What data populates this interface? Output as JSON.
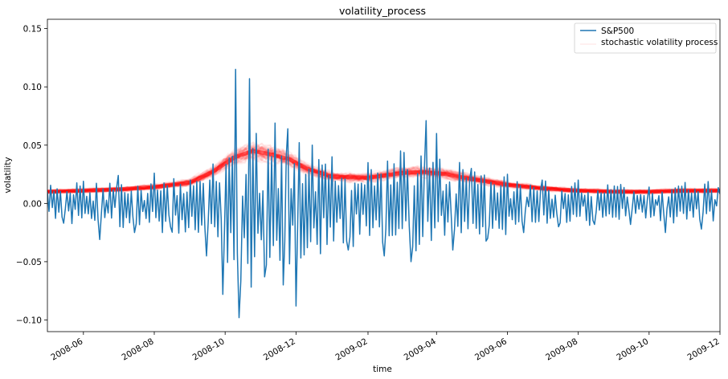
{
  "chart_data": {
    "type": "line",
    "title": "volatility_process",
    "xlabel": "time",
    "ylabel": "volatility",
    "x_start": "2008-05-01",
    "x_end": "2009-12-01",
    "ylim": [
      -0.11,
      0.158
    ],
    "grid": false,
    "legend_location": "top-right",
    "xticks": [
      "2008-06",
      "2008-08",
      "2008-10",
      "2008-12",
      "2009-02",
      "2009-04",
      "2009-06",
      "2009-08",
      "2009-10",
      "2009-12"
    ],
    "xtick_dates": [
      "2008-06-01",
      "2008-08-01",
      "2008-10-01",
      "2008-12-01",
      "2009-02-01",
      "2009-04-01",
      "2009-06-01",
      "2009-08-01",
      "2009-10-01",
      "2009-12-01"
    ],
    "yticks": [
      "0.15",
      "0.10",
      "0.05",
      "0.00",
      "−0.05",
      "−0.10"
    ],
    "ytick_values": [
      0.15,
      0.1,
      0.05,
      0.0,
      -0.05,
      -0.1
    ],
    "series": [
      {
        "name": "S&P500",
        "color": "#1f77b4",
        "style": "line",
        "dates": [
          "2008-05-01",
          "2008-05-15",
          "2008-06-01",
          "2008-06-15",
          "2008-07-01",
          "2008-07-15",
          "2008-08-01",
          "2008-08-15",
          "2008-09-01",
          "2008-09-15",
          "2008-09-29",
          "2008-10-10",
          "2008-10-13",
          "2008-10-22",
          "2008-11-04",
          "2008-11-13",
          "2008-11-20",
          "2008-11-24",
          "2008-12-01",
          "2008-12-15",
          "2009-01-01",
          "2009-01-15",
          "2009-02-01",
          "2009-02-15",
          "2009-03-01",
          "2009-03-10",
          "2009-03-23",
          "2009-04-01",
          "2009-04-15",
          "2009-05-01",
          "2009-05-15",
          "2009-06-01",
          "2009-06-15",
          "2009-07-01",
          "2009-07-15",
          "2009-08-01",
          "2009-08-15",
          "2009-09-01",
          "2009-09-15",
          "2009-10-01",
          "2009-10-15",
          "2009-11-01",
          "2009-11-15",
          "2009-12-01"
        ],
        "values": [
          0.01,
          -0.017,
          0.019,
          -0.031,
          0.024,
          -0.025,
          0.026,
          -0.02,
          0.02,
          -0.045,
          -0.078,
          0.115,
          -0.098,
          0.107,
          -0.063,
          0.069,
          -0.07,
          0.064,
          -0.088,
          0.05,
          0.04,
          -0.04,
          0.035,
          -0.045,
          0.045,
          -0.05,
          0.071,
          0.06,
          -0.04,
          0.03,
          -0.03,
          0.025,
          -0.025,
          0.02,
          -0.02,
          0.02,
          -0.018,
          0.015,
          -0.018,
          0.014,
          -0.025,
          0.018,
          -0.022,
          0.008
        ]
      },
      {
        "name": "stochastic volatility process",
        "color": "#ff0000",
        "style": "band",
        "dates": [
          "2008-05-01",
          "2008-06-01",
          "2008-07-01",
          "2008-08-01",
          "2008-09-01",
          "2008-09-20",
          "2008-10-10",
          "2008-10-25",
          "2008-11-10",
          "2008-11-25",
          "2008-12-10",
          "2009-01-01",
          "2009-02-01",
          "2009-03-01",
          "2009-03-20",
          "2009-04-10",
          "2009-05-01",
          "2009-06-01",
          "2009-07-01",
          "2009-08-01",
          "2009-09-01",
          "2009-10-01",
          "2009-11-01",
          "2009-12-01"
        ],
        "values": [
          0.01,
          0.011,
          0.012,
          0.014,
          0.018,
          0.027,
          0.04,
          0.045,
          0.042,
          0.038,
          0.03,
          0.023,
          0.022,
          0.026,
          0.027,
          0.025,
          0.021,
          0.016,
          0.013,
          0.011,
          0.01,
          0.01,
          0.011,
          0.011
        ]
      }
    ]
  }
}
